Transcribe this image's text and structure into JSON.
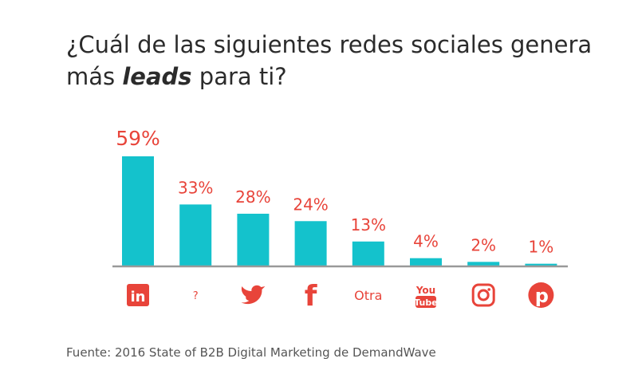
{
  "title": {
    "before": "¿Cuál de las siguientes redes sociales genera más ",
    "emphasis": "leads",
    "after": " para ti?"
  },
  "source": "Fuente: 2016 State of B2B Digital Marketing de DemandWave",
  "colors": {
    "bar": "#14c2cc",
    "label": "#e8443a",
    "axis": "#999999",
    "title": "#2b2b2b"
  },
  "chart_data": {
    "type": "bar",
    "categories": [
      "LinkedIn",
      "?",
      "Twitter",
      "Facebook",
      "Otra",
      "YouTube",
      "Instagram",
      "Pinterest"
    ],
    "category_icons": [
      "linkedin-icon",
      "question-mark",
      "twitter-icon",
      "facebook-icon",
      "text",
      "youtube-icon",
      "instagram-icon",
      "pinterest-icon"
    ],
    "values": [
      59,
      33,
      28,
      24,
      13,
      4,
      2,
      1
    ],
    "data_labels": [
      "59%",
      "33%",
      "28%",
      "24%",
      "13%",
      "4%",
      "2%",
      "1%"
    ],
    "ylim": [
      0,
      59
    ],
    "grid": false,
    "legend": "none"
  }
}
